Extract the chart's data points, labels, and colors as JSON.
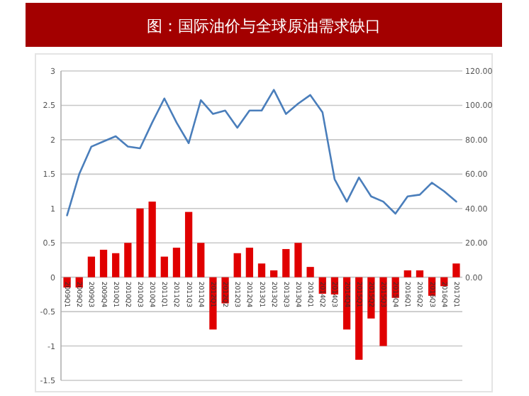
{
  "chart_data": {
    "type": "bar",
    "title": "图：国际油价与全球原油需求缺口",
    "categories": [
      "2009Q1",
      "2009Q2",
      "2009Q3",
      "2009Q4",
      "2010Q1",
      "2010Q2",
      "2010Q3",
      "2010Q4",
      "2011Q1",
      "2011Q2",
      "2011Q3",
      "2011Q4",
      "2012Q1",
      "2012Q2",
      "2012Q3",
      "2012Q4",
      "2013Q1",
      "2013Q2",
      "2013Q3",
      "2013Q4",
      "2014Q1",
      "2014Q2",
      "2014Q3",
      "2014Q4",
      "2015Q1",
      "2015Q2",
      "2015Q3",
      "2015Q4",
      "2016Q1",
      "2016Q2",
      "2016Q3",
      "2016Q4",
      "2017Q1"
    ],
    "series": [
      {
        "color": "#e00000",
        "values": [
          -0.15,
          -0.15,
          0.3,
          0.4,
          0.35,
          0.5,
          1.0,
          1.1,
          0.3,
          0.43,
          0.95,
          0.5,
          -0.76,
          -0.38,
          0.35,
          0.43,
          0.2,
          0.1,
          0.41,
          0.5,
          0.15,
          -0.24,
          -0.25,
          -0.76,
          -1.2,
          -0.6,
          -1.0,
          -0.3,
          0.1,
          0.1,
          -0.27,
          -0.13,
          0.2
        ]
      },
      {
        "type": "line",
        "axis": "y2",
        "color": "#4a7ebb",
        "values": [
          36,
          60,
          76,
          79,
          82,
          76,
          75,
          90,
          104,
          90,
          78,
          103,
          95,
          97,
          87,
          97,
          97,
          109,
          95,
          101,
          106,
          96,
          57,
          44,
          58,
          47,
          44,
          37,
          47,
          48,
          55,
          50,
          44
        ]
      }
    ],
    "ylim": [
      -1.5,
      3
    ],
    "yticks": [
      -1.5,
      -1,
      -0.5,
      0,
      0.5,
      1,
      1.5,
      2,
      2.5,
      3
    ],
    "y2lim": [
      -60,
      120
    ],
    "y2ticks": [
      {
        "value": 0,
        "label": "0.00"
      },
      {
        "value": 20,
        "label": "20.00"
      },
      {
        "value": 40,
        "label": "40.00"
      },
      {
        "value": 60,
        "label": "60.00"
      },
      {
        "value": 80,
        "label": "80.00"
      },
      {
        "value": 100,
        "label": "100.00"
      },
      {
        "value": 120,
        "label": "120.00"
      }
    ],
    "grid": "y"
  }
}
